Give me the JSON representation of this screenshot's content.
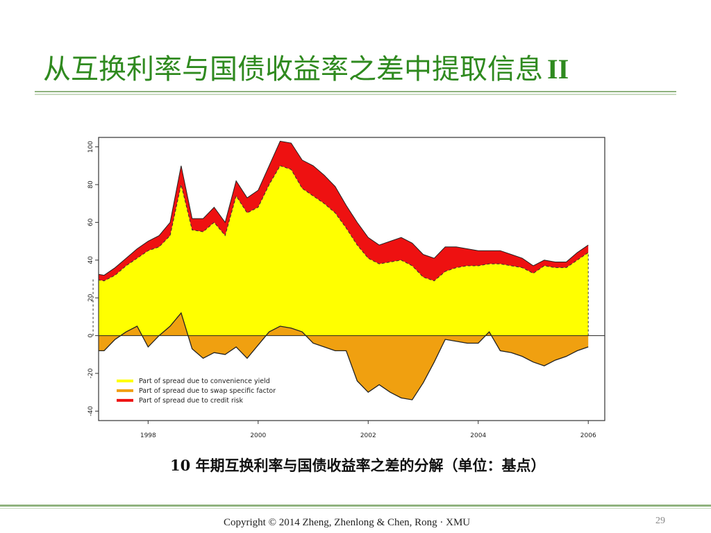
{
  "slide": {
    "title": "从互换利率与国债收益率之差中提取信息",
    "title_suffix": "II",
    "caption": "10 年期互换利率与国债收益率之差的分解（单位：基点）",
    "copyright": "Copyright © 2014 Zheng, Zhenlong & Chen, Rong · XMU",
    "page_number": "29",
    "accent_color": "#2f8a1f"
  },
  "chart_data": {
    "type": "area",
    "title": "",
    "xlabel": "",
    "ylabel": "",
    "xlim": [
      1997.1,
      2006.3
    ],
    "ylim": [
      -45,
      105
    ],
    "x_ticks": [
      1998,
      2000,
      2002,
      2004,
      2006
    ],
    "y_ticks": [
      -40,
      -20,
      0,
      20,
      40,
      60,
      80,
      100
    ],
    "legend_position": "bottom-left",
    "grid": false,
    "x": [
      1997.0,
      1997.2,
      1997.4,
      1997.6,
      1997.8,
      1998.0,
      1998.2,
      1998.4,
      1998.6,
      1998.8,
      1999.0,
      1999.2,
      1999.4,
      1999.6,
      1999.8,
      2000.0,
      2000.2,
      2000.4,
      2000.6,
      2000.8,
      2001.0,
      2001.2,
      2001.4,
      2001.6,
      2001.8,
      2002.0,
      2002.2,
      2002.4,
      2002.6,
      2002.8,
      2003.0,
      2003.2,
      2003.4,
      2003.6,
      2003.8,
      2004.0,
      2004.2,
      2004.4,
      2004.6,
      2004.8,
      2005.0,
      2005.2,
      2005.4,
      2005.6,
      2005.8,
      2006.0
    ],
    "series": [
      {
        "name": "Part of spread due to convenience yield",
        "color": "#ffff00",
        "values": [
          30,
          29,
          32,
          37,
          41,
          45,
          47,
          53,
          80,
          56,
          55,
          60,
          53,
          74,
          65,
          68,
          80,
          90,
          88,
          78,
          74,
          70,
          65,
          57,
          48,
          41,
          38,
          39,
          40,
          37,
          31,
          29,
          34,
          36,
          37,
          37,
          38,
          38,
          37,
          36,
          33,
          37,
          36,
          36,
          40,
          44
        ]
      },
      {
        "name": "Part of spread due to swap specific factor",
        "color": "#f0a010",
        "values": [
          -8,
          -8,
          -2,
          2,
          5,
          -6,
          0,
          5,
          12,
          -7,
          -12,
          -9,
          -10,
          -6,
          -12,
          -5,
          2,
          5,
          4,
          2,
          -4,
          -6,
          -8,
          -8,
          -24,
          -30,
          -26,
          -30,
          -33,
          -34,
          -25,
          -14,
          -2,
          -3,
          -4,
          -4,
          2,
          -8,
          -9,
          -11,
          -14,
          -16,
          -13,
          -11,
          -8,
          -6
        ]
      },
      {
        "name": "Part of spread due to credit risk",
        "color": "#ee1111",
        "values": [
          3,
          3,
          4,
          4,
          5,
          5,
          6,
          7,
          10,
          6,
          7,
          8,
          7,
          8,
          8,
          9,
          10,
          13,
          14,
          15,
          16,
          15,
          14,
          12,
          12,
          11,
          10,
          11,
          12,
          12,
          12,
          12,
          13,
          11,
          9,
          8,
          7,
          7,
          6,
          5,
          4,
          3,
          3,
          3,
          4,
          4
        ]
      }
    ]
  }
}
